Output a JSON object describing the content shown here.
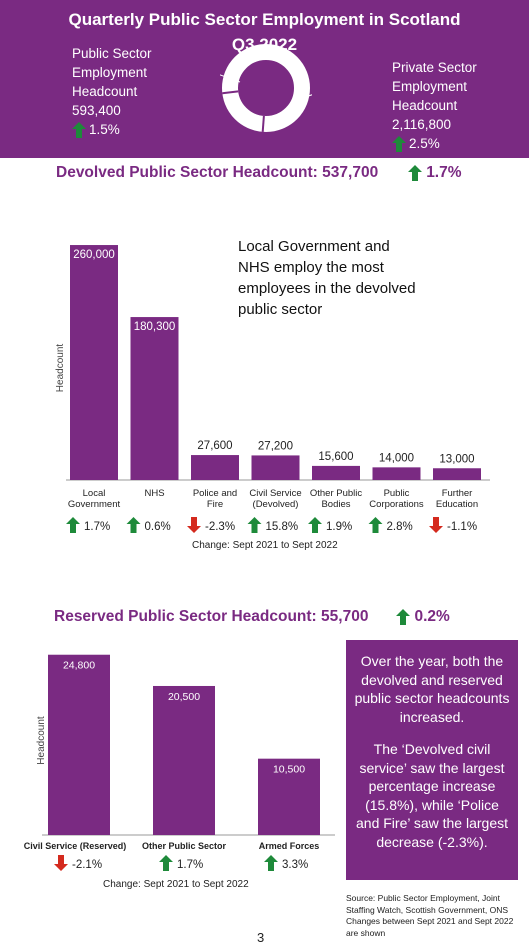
{
  "banner": {
    "title_line1": "Quarterly Public Sector Employment in Scotland",
    "title_line2": "Q3 2022",
    "public": {
      "label_lines": [
        "Public Sector",
        "Employment",
        "Headcount"
      ],
      "value": "593,400",
      "pct": "1.5%",
      "direction": "up"
    },
    "private": {
      "label_lines": [
        "Private Sector",
        "Employment",
        "Headcount"
      ],
      "value": "2,116,800",
      "pct": "2.5%",
      "direction": "up"
    },
    "donut": {
      "public_value": 593400,
      "private_value": 2116800
    }
  },
  "devolved": {
    "label": "Devolved Public Sector Headcount:",
    "value": "537,700",
    "pct": "1.7%",
    "direction": "up"
  },
  "reserved": {
    "label": "Reserved Public Sector Headcount:",
    "value": "55,700",
    "pct": "0.2%",
    "direction": "up"
  },
  "callout": "Local Government and NHS employ the most employees in the devolved public sector",
  "note": {
    "para1": "Over the year, both the devolved  and reserved public sector headcounts increased.",
    "para2": "The ‘Devolved civil service’ saw the largest percentage increase (15.8%), while ‘Police and Fire’ saw the largest decrease (-2.3%)."
  },
  "source": "Source: Public Sector Employment, Joint Staffing Watch, Scottish Government, ONS Changes between Sept 2021 and Sept 2022 are shown",
  "page_number": "3",
  "colors": {
    "purple": "#7a2a82",
    "up": "#1e8a3a",
    "down": "#d42a1e"
  },
  "chart_data": [
    {
      "type": "bar",
      "ylabel": "Headcount",
      "ylim": [
        0,
        270000
      ],
      "categories": [
        [
          "Local",
          "Government"
        ],
        [
          "NHS"
        ],
        [
          "Police and",
          "Fire"
        ],
        [
          "Civil Service",
          "(Devolved)"
        ],
        [
          "Other Public",
          "Bodies"
        ],
        [
          "Public",
          "Corporations"
        ],
        [
          "Further",
          "Education"
        ]
      ],
      "values": [
        260000,
        180300,
        27600,
        27200,
        15600,
        14000,
        13000
      ],
      "value_labels": [
        "260,000",
        "180,300",
        "27,600",
        "27,200",
        "15,600",
        "14,000",
        "13,000"
      ],
      "changes": [
        {
          "pct": "1.7%",
          "direction": "up"
        },
        {
          "pct": "0.6%",
          "direction": "up"
        },
        {
          "pct": "-2.3%",
          "direction": "down"
        },
        {
          "pct": "15.8%",
          "direction": "up"
        },
        {
          "pct": "1.9%",
          "direction": "up"
        },
        {
          "pct": "2.8%",
          "direction": "up"
        },
        {
          "pct": "-1.1%",
          "direction": "down"
        }
      ],
      "change_caption": "Change:   Sept  2021 to Sept 2022"
    },
    {
      "type": "bar",
      "ylabel": "Headcount",
      "ylim": [
        0,
        26000
      ],
      "categories": [
        "Civil Service (Reserved)",
        "Other Public Sector",
        "Armed Forces"
      ],
      "values": [
        24800,
        20500,
        10500
      ],
      "value_labels": [
        "24,800",
        "20,500",
        "10,500"
      ],
      "changes": [
        {
          "pct": "-2.1%",
          "direction": "down"
        },
        {
          "pct": "1.7%",
          "direction": "up"
        },
        {
          "pct": "3.3%",
          "direction": "up"
        }
      ],
      "change_caption": "Change:  Sept  2021 to Sept 2022"
    }
  ]
}
